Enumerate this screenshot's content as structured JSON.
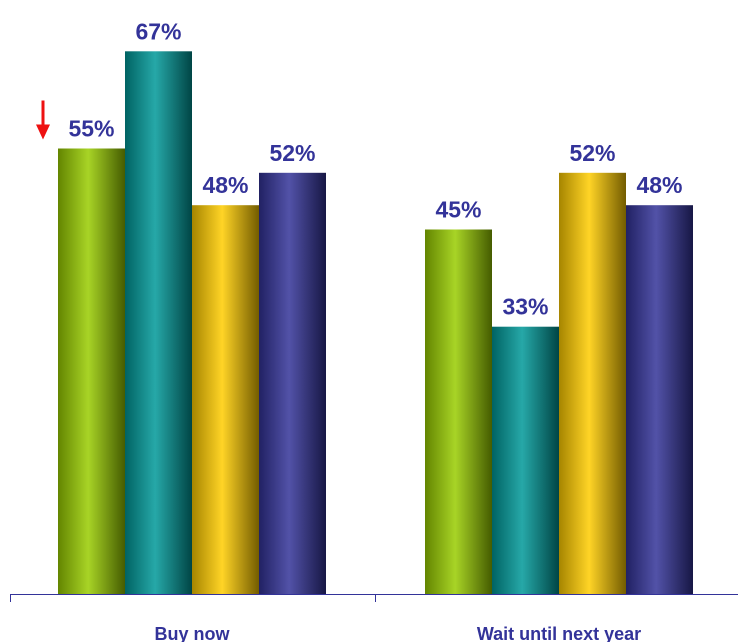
{
  "chart_data": {
    "type": "bar",
    "categories": [
      "Buy now",
      "Wait until next year"
    ],
    "series": [
      {
        "values": [
          55,
          45
        ]
      },
      {
        "values": [
          67,
          33
        ]
      },
      {
        "values": [
          48,
          52
        ]
      },
      {
        "values": [
          52,
          48
        ]
      }
    ],
    "data_labels": [
      [
        "55%",
        "45%"
      ],
      [
        "67%",
        "33%"
      ],
      [
        "48%",
        "52%"
      ],
      [
        "52%",
        "48%"
      ]
    ],
    "ylim": [
      0,
      100
    ],
    "grid": false,
    "legend": "none",
    "annotations": [
      {
        "type": "down-arrow",
        "series": 0,
        "category": 0,
        "color": "#ee1111"
      }
    ]
  },
  "colors": {
    "series": [
      "#99cc00",
      "#009999",
      "#ffcc00",
      "#333399"
    ],
    "value_label": "#333399",
    "category_label": "#333399",
    "axis": "#333399",
    "arrow": "#ee1111"
  }
}
